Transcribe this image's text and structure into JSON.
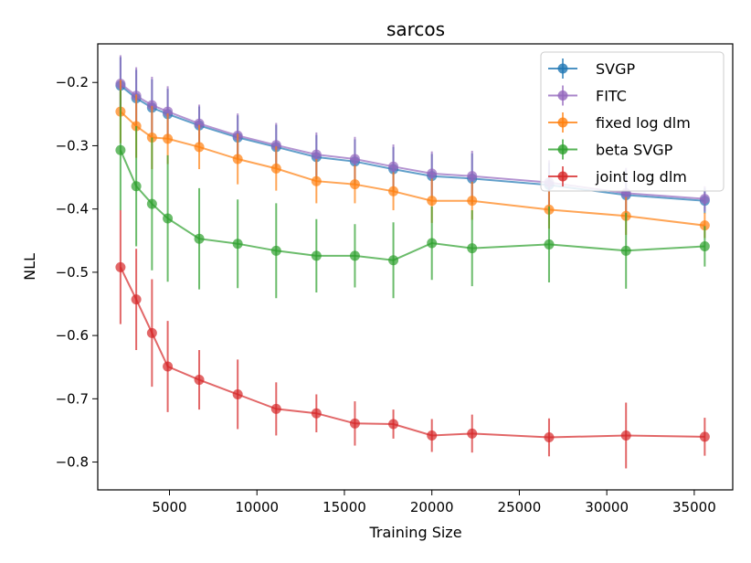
{
  "chart_data": {
    "type": "line",
    "title": "sarcos",
    "xlabel": "Training Size",
    "ylabel": "NLL",
    "xlim": [
      900,
      37200
    ],
    "ylim": [
      -0.844,
      -0.139
    ],
    "xticks": [
      5000,
      10000,
      15000,
      20000,
      25000,
      30000,
      35000
    ],
    "xtick_labels": [
      "5000",
      "10000",
      "15000",
      "20000",
      "25000",
      "30000",
      "35000"
    ],
    "yticks": [
      -0.2,
      -0.3,
      -0.4,
      -0.5,
      -0.6,
      -0.7,
      -0.8
    ],
    "ytick_labels": [
      "−0.2",
      "−0.3",
      "−0.4",
      "−0.5",
      "−0.6",
      "−0.7",
      "−0.8"
    ],
    "legend_position": "top-right",
    "x": [
      2200,
      3100,
      4000,
      4900,
      6700,
      8900,
      11100,
      13400,
      15600,
      17800,
      20000,
      22300,
      26700,
      31100,
      35600
    ],
    "series": [
      {
        "name": "SVGP",
        "color": "#1f77b4",
        "values": [
          -0.205,
          -0.225,
          -0.24,
          -0.25,
          -0.268,
          -0.287,
          -0.302,
          -0.318,
          -0.325,
          -0.337,
          -0.348,
          -0.352,
          -0.362,
          -0.378,
          -0.387
        ],
        "errors": [
          0.045,
          0.045,
          0.045,
          0.04,
          0.03,
          0.035,
          0.035,
          0.035,
          0.035,
          0.035,
          0.035,
          0.04,
          0.035,
          0.04,
          0.02
        ]
      },
      {
        "name": "FITC",
        "color": "#9467bd",
        "values": [
          -0.202,
          -0.221,
          -0.236,
          -0.246,
          -0.265,
          -0.284,
          -0.299,
          -0.314,
          -0.321,
          -0.333,
          -0.344,
          -0.348,
          -0.358,
          -0.375,
          -0.384
        ],
        "errors": [
          0.045,
          0.045,
          0.045,
          0.04,
          0.03,
          0.035,
          0.035,
          0.035,
          0.035,
          0.035,
          0.035,
          0.04,
          0.035,
          0.04,
          0.02
        ]
      },
      {
        "name": "fixed log dlm",
        "color": "#ff7f0e",
        "values": [
          -0.246,
          -0.269,
          -0.287,
          -0.289,
          -0.302,
          -0.321,
          -0.336,
          -0.356,
          -0.361,
          -0.372,
          -0.387,
          -0.387,
          -0.401,
          -0.411,
          -0.426
        ],
        "errors": [
          0.05,
          0.05,
          0.05,
          0.04,
          0.035,
          0.04,
          0.035,
          0.035,
          0.03,
          0.03,
          0.035,
          0.03,
          0.03,
          0.03,
          0.02
        ]
      },
      {
        "name": "beta SVGP",
        "color": "#2ca02c",
        "values": [
          -0.307,
          -0.364,
          -0.392,
          -0.415,
          -0.447,
          -0.455,
          -0.466,
          -0.474,
          -0.474,
          -0.481,
          -0.454,
          -0.462,
          -0.456,
          -0.466,
          -0.459
        ],
        "errors": [
          0.095,
          0.095,
          0.105,
          0.1,
          0.08,
          0.07,
          0.075,
          0.058,
          0.05,
          0.06,
          0.058,
          0.06,
          0.06,
          0.06,
          0.032
        ]
      },
      {
        "name": "joint log dlm",
        "color": "#d62728",
        "values": [
          -0.492,
          -0.543,
          -0.596,
          -0.649,
          -0.67,
          -0.693,
          -0.716,
          -0.723,
          -0.739,
          -0.74,
          -0.758,
          -0.755,
          -0.761,
          -0.758,
          -0.76
        ],
        "errors": [
          0.09,
          0.08,
          0.085,
          0.072,
          0.047,
          0.055,
          0.042,
          0.03,
          0.035,
          0.023,
          0.026,
          0.03,
          0.03,
          0.052,
          0.03
        ]
      }
    ]
  }
}
